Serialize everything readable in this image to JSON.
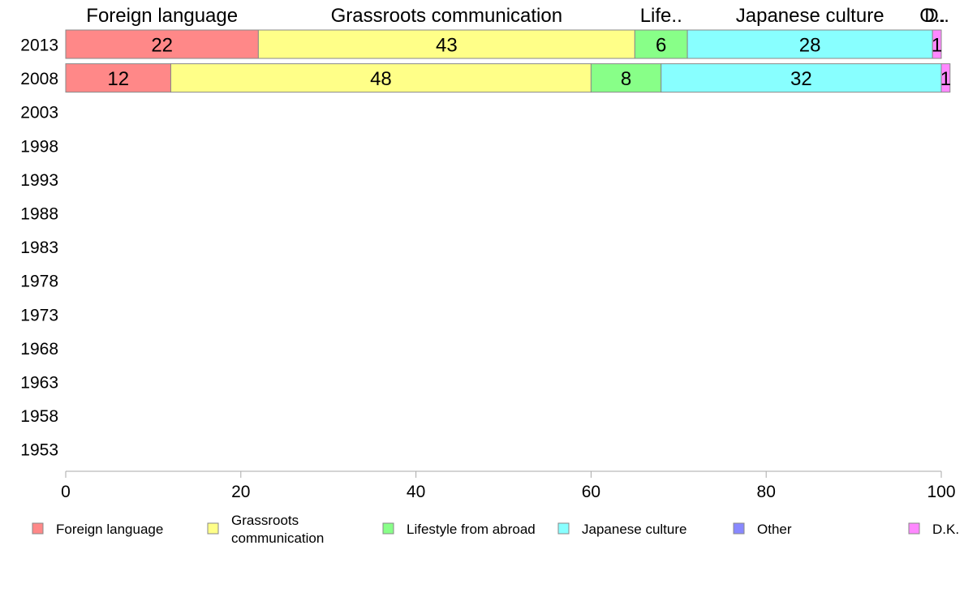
{
  "chart_data": {
    "type": "bar",
    "orientation": "horizontal",
    "stacked": true,
    "categories": [
      "2013",
      "2008",
      "2003",
      "1998",
      "1993",
      "1988",
      "1983",
      "1978",
      "1973",
      "1968",
      "1963",
      "1958",
      "1953"
    ],
    "series": [
      {
        "name": "Foreign language",
        "values": [
          22,
          12,
          null,
          null,
          null,
          null,
          null,
          null,
          null,
          null,
          null,
          null,
          null
        ],
        "color": "#ff8888",
        "top_label": "Foreign language"
      },
      {
        "name": "Grassroots communication",
        "values": [
          43,
          48,
          null,
          null,
          null,
          null,
          null,
          null,
          null,
          null,
          null,
          null,
          null
        ],
        "color": "#ffff88",
        "top_label": "Grassroots communication",
        "legend_lines": [
          "Grassroots",
          "communication"
        ]
      },
      {
        "name": "Lifestyle from abroad",
        "values": [
          6,
          8,
          null,
          null,
          null,
          null,
          null,
          null,
          null,
          null,
          null,
          null,
          null
        ],
        "color": "#88ff88",
        "top_label": "Life.."
      },
      {
        "name": "Japanese culture",
        "values": [
          28,
          32,
          null,
          null,
          null,
          null,
          null,
          null,
          null,
          null,
          null,
          null,
          null
        ],
        "color": "#88ffff",
        "top_label": "Japanese culture"
      },
      {
        "name": "Other",
        "values": [
          0,
          0,
          null,
          null,
          null,
          null,
          null,
          null,
          null,
          null,
          null,
          null,
          null
        ],
        "color": "#8888ff",
        "top_label": "O.."
      },
      {
        "name": "D.K.",
        "values": [
          1,
          1,
          null,
          null,
          null,
          null,
          null,
          null,
          null,
          null,
          null,
          null,
          null
        ],
        "color": "#ff88ff",
        "top_label": "D.."
      }
    ],
    "xlim": [
      0,
      100
    ],
    "xticks": [
      "0",
      "20",
      "40",
      "60",
      "80",
      "100"
    ],
    "title": "",
    "xlabel": "",
    "ylabel": "",
    "grid": false,
    "legend_position": "bottom"
  }
}
